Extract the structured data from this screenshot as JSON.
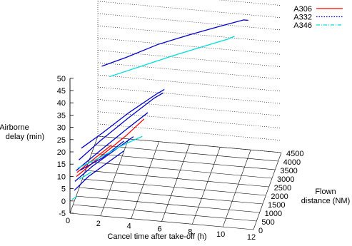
{
  "chart_data": {
    "type": "line",
    "projection": "3d",
    "xlabel": "Cancel time after take-off (h)",
    "ylabel": "Flown distance (NM)",
    "zlabel": "Airborne delay (min)",
    "xlim": [
      0,
      12
    ],
    "ylim": [
      0,
      4500
    ],
    "zlim": [
      -5,
      50
    ],
    "x_ticks": [
      "0",
      "2",
      "4",
      "6",
      "8",
      "10",
      "12"
    ],
    "y_ticks": [
      "0",
      "500",
      "1000",
      "1500",
      "2000",
      "2500",
      "3000",
      "3500",
      "4000",
      "4500"
    ],
    "z_ticks": [
      "-5",
      "0",
      "5",
      "10",
      "15",
      "20",
      "25",
      "30",
      "35",
      "40",
      "45",
      "50"
    ],
    "grid": true,
    "legend_position": "top-right",
    "series": [
      {
        "name": "A306",
        "color": "#ff0000",
        "dash": "solid",
        "lines": [
          [
            [
              0.3,
              300,
              8
            ],
            [
              1.5,
              900,
              12
            ],
            [
              3.0,
              1600,
              17
            ],
            [
              4.0,
              2100,
              21
            ]
          ],
          [
            [
              0.3,
              400,
              9
            ],
            [
              1.2,
              800,
              12
            ],
            [
              2.2,
              1300,
              15
            ]
          ]
        ]
      },
      {
        "name": "A332",
        "color": "#0000cc",
        "dash": "dotted",
        "lines": [
          [
            [
              0.5,
              3900,
              28
            ],
            [
              2,
              4100,
              31
            ],
            [
              4,
              4300,
              36
            ],
            [
              6,
              4450,
              40
            ],
            [
              8,
              4550,
              44
            ],
            [
              9.5,
              4600,
              47
            ],
            [
              9.8,
              4600,
              47
            ]
          ],
          [
            [
              0.3,
              1100,
              14
            ],
            [
              1.5,
              1500,
              18
            ],
            [
              3.0,
              2100,
              23
            ],
            [
              4.5,
              2700,
              27
            ],
            [
              5.0,
              2900,
              28
            ]
          ],
          [
            [
              0.3,
              700,
              12
            ],
            [
              1.5,
              1200,
              17
            ],
            [
              3.0,
              1900,
              22
            ],
            [
              4.5,
              2500,
              27
            ],
            [
              5.0,
              2700,
              28
            ]
          ],
          [
            [
              0.2,
              500,
              9
            ],
            [
              1.5,
              1000,
              14
            ],
            [
              3.0,
              1700,
              19
            ],
            [
              4.2,
              2200,
              23
            ]
          ],
          [
            [
              0.2,
              300,
              6
            ],
            [
              1.2,
              700,
              10
            ],
            [
              2.5,
              1200,
              14
            ],
            [
              3.5,
              1600,
              17
            ]
          ],
          [
            [
              0.2,
              200,
              3
            ],
            [
              1.0,
              500,
              7
            ],
            [
              2.0,
              900,
              10
            ],
            [
              3.0,
              1300,
              13
            ]
          ],
          [
            [
              0.5,
              400,
              10
            ],
            [
              1.8,
              800,
              13
            ],
            [
              3.0,
              1300,
              17
            ]
          ]
        ]
      },
      {
        "name": "A346",
        "color": "#00dddd",
        "dash": "dash-dot",
        "lines": [
          [
            [
              1.0,
              3900,
              24
            ],
            [
              3,
              4100,
              28
            ],
            [
              5,
              4300,
              32
            ],
            [
              7,
              4450,
              36
            ],
            [
              8.5,
              4550,
              39
            ],
            [
              8.9,
              4600,
              40
            ]
          ],
          [
            [
              0.3,
              500,
              10
            ],
            [
              1.5,
              900,
              12
            ],
            [
              3.0,
              1400,
              15
            ],
            [
              4.0,
              1800,
              16
            ]
          ],
          [
            [
              0.1,
              100,
              0
            ],
            [
              0.4,
              150,
              1
            ]
          ],
          [
            [
              0.5,
              300,
              7
            ],
            [
              1.2,
              500,
              9
            ]
          ]
        ]
      }
    ]
  }
}
